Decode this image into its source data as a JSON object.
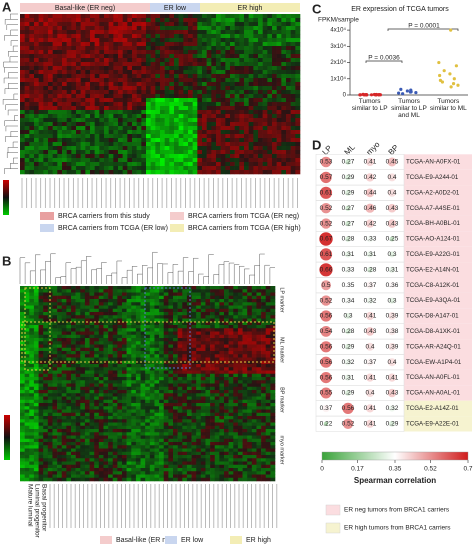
{
  "panel_a": {
    "letter": "A",
    "groups": [
      "Basal-like (ER neg)",
      "ER low",
      "ER high"
    ],
    "legend": [
      {
        "label": "BRCA carriers from this study",
        "color": "#e8a0a0"
      },
      {
        "label": "BRCA carriers from TCGA (ER neg)",
        "color": "#f4cccc"
      },
      {
        "label": "BRCA carriers from TCGA (ER low)",
        "color": "#c9d6ef"
      },
      {
        "label": "BRCA carriers from TCGA (ER high)",
        "color": "#f3edb5"
      }
    ]
  },
  "panel_b": {
    "letter": "B",
    "markers": [
      "LP marker",
      "ML marker",
      "BP marker",
      "myo marker"
    ],
    "rows": [
      "Mature luminal",
      "Luminal progenitor",
      "Basal progenitor"
    ],
    "legend": [
      {
        "label": "Basal-like (ER neg)",
        "color": "#f4cccc"
      },
      {
        "label": "ER low",
        "color": "#c9d6ef"
      },
      {
        "label": "ER high",
        "color": "#f3edb5"
      }
    ]
  },
  "chart_data": [
    {
      "type": "strip",
      "letter": "C",
      "title": "ER expression of TCGA tumors",
      "y_label": "FPKM/sample",
      "categories": [
        "Tumors similar to LP",
        "Tumors similar to LP and ML",
        "Tumors similar to ML"
      ],
      "groups": [
        {
          "color": "#d62728",
          "values": [
            50,
            100,
            200,
            80,
            150,
            300,
            120,
            60,
            250,
            180,
            90,
            400,
            220,
            130,
            70,
            350,
            110
          ]
        },
        {
          "color": "#3b5bb5",
          "values": [
            1500,
            2500,
            3000,
            2000,
            800,
            1200,
            3500,
            1800
          ]
        },
        {
          "color": "#e0c040",
          "values": [
            5000,
            8000,
            12000,
            15000,
            10000,
            7000,
            20000,
            18000,
            9000,
            13000,
            40000,
            6000
          ]
        }
      ],
      "ylim": [
        0,
        45000
      ],
      "yticks": [
        0,
        {
          "value": 10000,
          "label": "1x10⁴"
        },
        {
          "value": 20000,
          "label": "2x10⁴"
        },
        {
          "value": 30000,
          "label": "3x10⁴"
        },
        {
          "value": 40000,
          "label": "4x10⁴"
        }
      ],
      "annotations": [
        "P = 0.0036",
        "P = 0.0001"
      ]
    },
    {
      "type": "correlation",
      "letter": "D",
      "columns": [
        "LP",
        "ML",
        "myo",
        "BP"
      ],
      "rows": [
        "TCGA-AN-A0FX-01",
        "TCGA-E9-A244-01",
        "TCGA-A2-A0D2-01",
        "TCGA-A7-A4SE-01",
        "TCGA-BH-A0BL-01",
        "TCGA-AO-A124-01",
        "TCGA-E9-A22G-01",
        "TCGA-E2-A14N-01",
        "TCGA-C8-A12K-01",
        "TCGA-E9-A3QA-01",
        "TCGA-D8-A147-01",
        "TCGA-D8-A1XK-01",
        "TCGA-AR-A24Q-01",
        "TCGA-EW-A1P4-01",
        "TCGA-AN-A0FL-01",
        "TCGA-AN-A0AL-01",
        "TCGA-E2-A14Z-01",
        "TCGA-E9-A22E-01"
      ],
      "values": [
        [
          0.53,
          0.27,
          0.41,
          0.45
        ],
        [
          0.57,
          0.29,
          0.42,
          0.4
        ],
        [
          0.61,
          0.29,
          0.44,
          0.4
        ],
        [
          0.52,
          0.27,
          0.46,
          0.43
        ],
        [
          0.52,
          0.27,
          0.42,
          0.43
        ],
        [
          0.67,
          0.28,
          0.33,
          0.25
        ],
        [
          0.61,
          0.31,
          0.31,
          0.3
        ],
        [
          0.66,
          0.33,
          0.28,
          0.31
        ],
        [
          0.5,
          0.35,
          0.37,
          0.36
        ],
        [
          0.52,
          0.34,
          0.32,
          0.3
        ],
        [
          0.56,
          0.3,
          0.41,
          0.39
        ],
        [
          0.54,
          0.28,
          0.43,
          0.38
        ],
        [
          0.56,
          0.29,
          0.4,
          0.39
        ],
        [
          0.56,
          0.32,
          0.37,
          0.4
        ],
        [
          0.56,
          0.31,
          0.41,
          0.41
        ],
        [
          0.55,
          0.29,
          0.4,
          0.43
        ],
        [
          0.37,
          0.56,
          0.41,
          0.32
        ],
        [
          0.22,
          0.52,
          0.41,
          0.29
        ]
      ],
      "row_group": [
        0,
        0,
        0,
        0,
        0,
        0,
        0,
        0,
        0,
        0,
        0,
        0,
        0,
        0,
        0,
        0,
        1,
        1
      ],
      "colorbar": {
        "lim": [
          0,
          0.7
        ],
        "ticks": [
          0,
          0.17,
          0.35,
          0.52,
          0.7
        ],
        "label": "Spearman correlation",
        "colors": [
          "#3aa33a",
          "#ffffff",
          "#d01c1c"
        ]
      },
      "legend": [
        {
          "label": "ER neg tumors from BRCA1 carriers",
          "color": "#fbdde0"
        },
        {
          "label": "ER high tumors from BRCA1 carriers",
          "color": "#f6f3d0"
        }
      ]
    }
  ]
}
